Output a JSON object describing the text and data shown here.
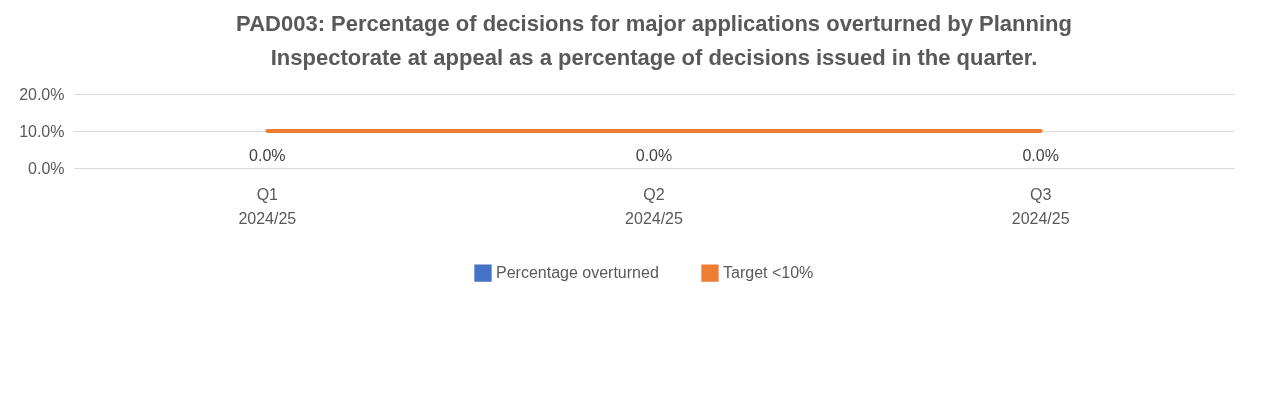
{
  "chart_data": {
    "type": "bar",
    "title": "PAD003: Percentage of decisions for major applications overturned by Planning Inspectorate at appeal as a percentage of decisions issued in the quarter.",
    "categories": [
      "Q1\n2024/25",
      "Q2\n2024/25",
      "Q3\n2024/25"
    ],
    "series": [
      {
        "name": "Percentage overturned",
        "color": "#4472c4",
        "values": [
          0,
          0,
          0
        ],
        "value_labels": [
          "0.0%",
          "0.0%",
          "0.0%"
        ]
      },
      {
        "name": "Target <10%",
        "type": "line",
        "color": "#ed7d31",
        "values": [
          10,
          10,
          10
        ]
      }
    ],
    "ylim": [
      0,
      20
    ],
    "yticks": [
      {
        "value": 0,
        "label": "0.0%"
      },
      {
        "value": 10,
        "label": "10.0%"
      },
      {
        "value": 20,
        "label": "20.0%"
      }
    ],
    "grid": "y",
    "legend": "bottom"
  }
}
